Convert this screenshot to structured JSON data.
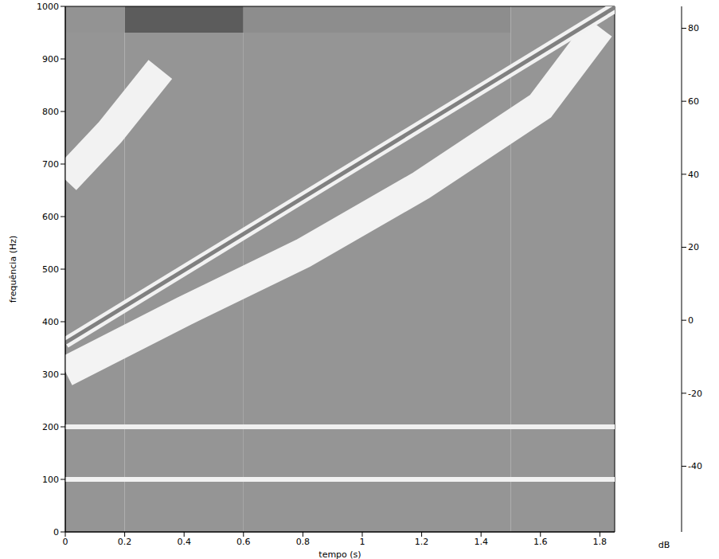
{
  "chart_data": {
    "type": "spectrogram",
    "xlabel": "tempo (s)",
    "ylabel": "frequência (Hz)",
    "xlim": [
      0,
      1.85
    ],
    "xticks": [
      0,
      0.2,
      0.4,
      0.6,
      0.8,
      1,
      1.2,
      1.4,
      1.6,
      1.8
    ],
    "ylim": [
      0,
      1000
    ],
    "yticks": [
      0,
      100,
      200,
      300,
      400,
      500,
      600,
      700,
      800,
      900,
      1000
    ],
    "colorbar": {
      "label": "dB",
      "range": [
        -58,
        86
      ],
      "ticks": [
        -40,
        -20,
        0,
        20,
        40,
        60,
        80
      ]
    },
    "cells": {
      "x": [
        0,
        0.2,
        0.6,
        1.5,
        1.85
      ],
      "y": [
        0,
        950,
        1000
      ],
      "values": [
        [
          5,
          5,
          5,
          5
        ],
        [
          0,
          -35,
          -10,
          5
        ]
      ]
    },
    "series": [
      {
        "x": [
          0,
          0.4,
          0.8,
          1.2,
          1.6,
          1.8
        ],
        "values": [
          305,
          420,
          530,
          660,
          810,
          960
        ],
        "level": 32,
        "line_style": "band"
      },
      {
        "x": [
          0,
          0.15,
          0.32
        ],
        "values": [
          670,
          760,
          880
        ],
        "level": 30,
        "line_style": "band"
      },
      {
        "x": [
          0,
          1.85
        ],
        "values": [
          360,
          998
        ],
        "level": 30,
        "line_style": "halo"
      },
      {
        "x": [
          0,
          1.85
        ],
        "values": [
          360,
          998
        ],
        "level": 75,
        "line_style": "thin"
      },
      {
        "x": [
          0,
          1.85
        ],
        "values": [
          100,
          100
        ],
        "level": 30,
        "line_style": "solid"
      },
      {
        "x": [
          0,
          1.85
        ],
        "values": [
          200,
          200
        ],
        "level": 28,
        "line_style": "solid"
      }
    ]
  }
}
